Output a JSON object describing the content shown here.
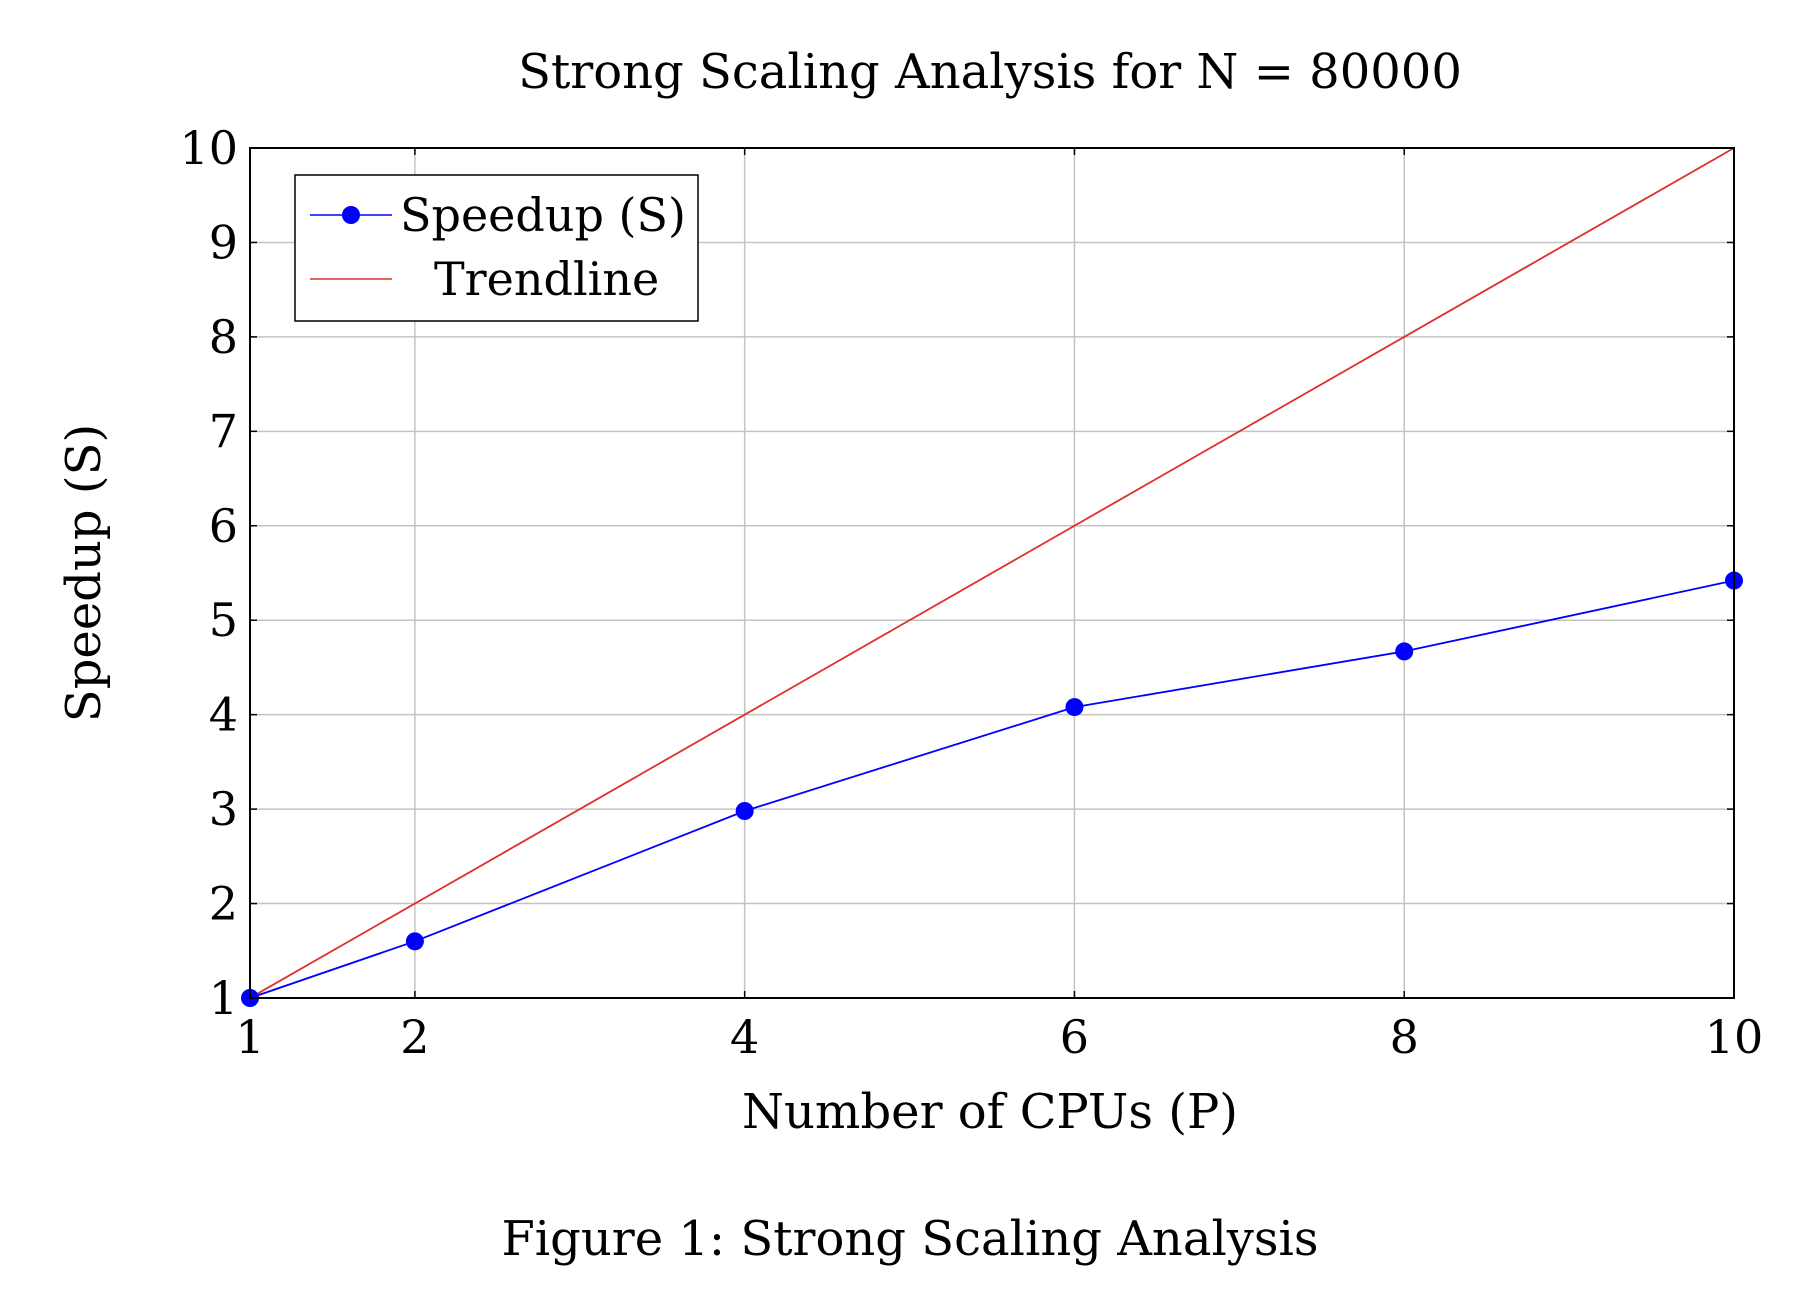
{
  "chart_data": {
    "type": "line",
    "title": "Strong Scaling Analysis for N = 80000",
    "xlabel": "Number of CPUs (P)",
    "ylabel": "Speedup (S)",
    "xlim": [
      1,
      10
    ],
    "ylim": [
      1,
      10
    ],
    "xticks": [
      1,
      2,
      4,
      6,
      8,
      10
    ],
    "yticks": [
      1,
      2,
      3,
      4,
      5,
      6,
      7,
      8,
      9,
      10
    ],
    "grid": true,
    "legend_position": "top-left",
    "series": [
      {
        "name": "Speedup (S)",
        "color": "#0000ff",
        "marker": "circle",
        "x": [
          1,
          2,
          4,
          6,
          8,
          10
        ],
        "y": [
          1,
          1.6,
          2.98,
          4.08,
          4.67,
          5.42
        ]
      },
      {
        "name": "Trendline",
        "color": "#e0302a",
        "marker": "none",
        "x": [
          1,
          10
        ],
        "y": [
          1,
          10
        ]
      }
    ]
  },
  "caption": "Figure 1: Strong Scaling Analysis"
}
